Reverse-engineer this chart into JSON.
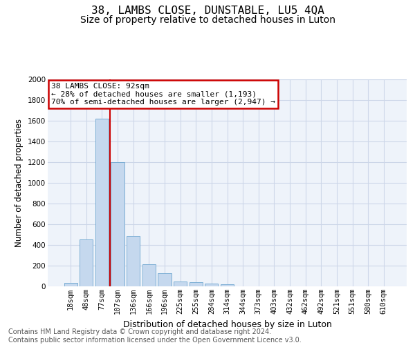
{
  "title": "38, LAMBS CLOSE, DUNSTABLE, LU5 4QA",
  "subtitle": "Size of property relative to detached houses in Luton",
  "xlabel": "Distribution of detached houses by size in Luton",
  "ylabel": "Number of detached properties",
  "footer_line1": "Contains HM Land Registry data © Crown copyright and database right 2024.",
  "footer_line2": "Contains public sector information licensed under the Open Government Licence v3.0.",
  "categories": [
    "18sqm",
    "48sqm",
    "77sqm",
    "107sqm",
    "136sqm",
    "166sqm",
    "196sqm",
    "225sqm",
    "255sqm",
    "284sqm",
    "314sqm",
    "344sqm",
    "373sqm",
    "403sqm",
    "432sqm",
    "462sqm",
    "492sqm",
    "521sqm",
    "551sqm",
    "580sqm",
    "610sqm"
  ],
  "values": [
    35,
    455,
    1620,
    1200,
    490,
    215,
    130,
    50,
    40,
    25,
    18,
    0,
    0,
    0,
    0,
    0,
    0,
    0,
    0,
    0,
    0
  ],
  "bar_color": "#c5d8ee",
  "bar_edge_color": "#7aadd4",
  "grid_color": "#ccd6e8",
  "background_color": "#eef3fa",
  "ylim": [
    0,
    2000
  ],
  "yticks": [
    0,
    200,
    400,
    600,
    800,
    1000,
    1200,
    1400,
    1600,
    1800,
    2000
  ],
  "property_line_x": 2.5,
  "annotation_line1": "38 LAMBS CLOSE: 92sqm",
  "annotation_line2": "← 28% of detached houses are smaller (1,193)",
  "annotation_line3": "70% of semi-detached houses are larger (2,947) →",
  "ann_box_edgecolor": "#cc0000",
  "vline_color": "#cc0000",
  "title_fontsize": 11.5,
  "subtitle_fontsize": 10,
  "xlabel_fontsize": 9,
  "ylabel_fontsize": 8.5,
  "tick_fontsize": 7.5,
  "ann_fontsize": 8,
  "footer_fontsize": 7
}
